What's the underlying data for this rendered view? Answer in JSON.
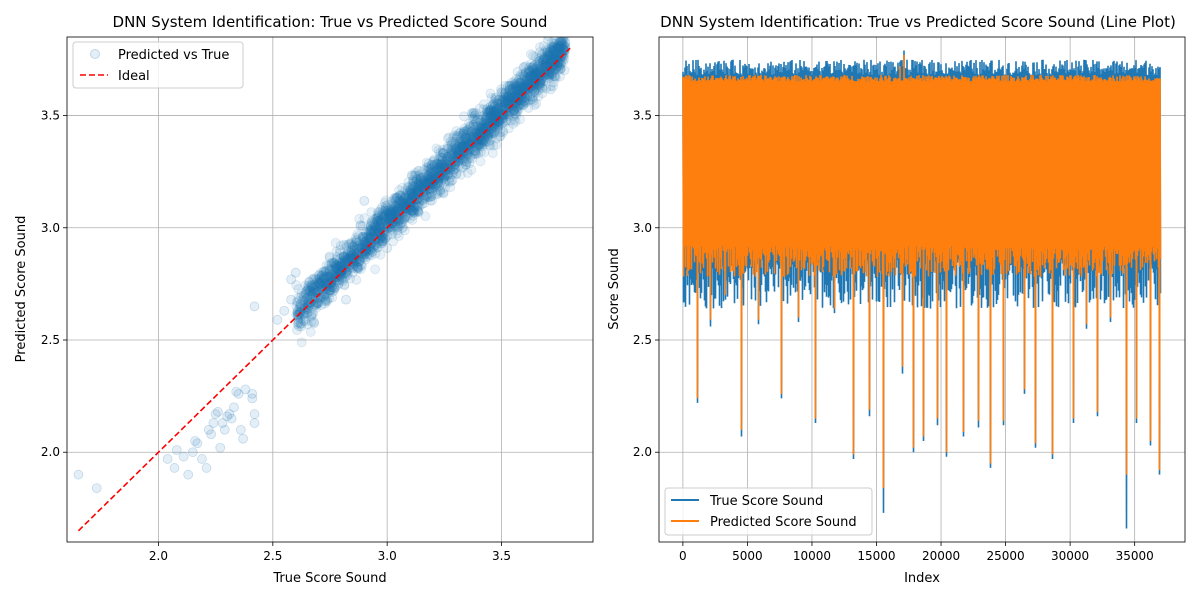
{
  "chart_data": [
    {
      "type": "scatter",
      "title": "DNN System Identification: True vs Predicted Score Sound",
      "xlabel": "True Score Sound",
      "ylabel": "Predicted Score Sound",
      "xlim": [
        1.6,
        3.9
      ],
      "ylim": [
        1.6,
        3.85
      ],
      "xticks": [
        "2.0",
        "2.5",
        "3.0",
        "3.5"
      ],
      "yticks": [
        "2.0",
        "2.5",
        "3.0",
        "3.5"
      ],
      "grid": true,
      "legend_position": "top-left",
      "legend": [
        "Predicted vs True",
        "Ideal"
      ],
      "series": [
        {
          "name": "Predicted vs True",
          "color": "#1f77b4",
          "points": [
            [
              1.65,
              1.9
            ],
            [
              1.73,
              1.84
            ],
            [
              2.04,
              1.97
            ],
            [
              2.07,
              1.93
            ],
            [
              2.08,
              2.01
            ],
            [
              2.11,
              1.98
            ],
            [
              2.13,
              1.9
            ],
            [
              2.15,
              2.0
            ],
            [
              2.16,
              2.05
            ],
            [
              2.17,
              2.04
            ],
            [
              2.19,
              1.97
            ],
            [
              2.21,
              1.93
            ],
            [
              2.22,
              2.1
            ],
            [
              2.23,
              2.08
            ],
            [
              2.24,
              2.13
            ],
            [
              2.25,
              2.17
            ],
            [
              2.26,
              2.18
            ],
            [
              2.27,
              2.02
            ],
            [
              2.28,
              2.13
            ],
            [
              2.29,
              2.1
            ],
            [
              2.3,
              2.16
            ],
            [
              2.31,
              2.17
            ],
            [
              2.32,
              2.15
            ],
            [
              2.33,
              2.2
            ],
            [
              2.34,
              2.27
            ],
            [
              2.35,
              2.26
            ],
            [
              2.36,
              2.1
            ],
            [
              2.37,
              2.06
            ],
            [
              2.38,
              2.28
            ],
            [
              2.41,
              2.26
            ],
            [
              2.41,
              2.24
            ],
            [
              2.42,
              2.17
            ],
            [
              2.42,
              2.13
            ],
            [
              2.42,
              2.65
            ],
            [
              2.52,
              2.59
            ],
            [
              2.55,
              2.63
            ],
            [
              2.58,
              2.68
            ],
            [
              2.58,
              2.77
            ],
            [
              2.6,
              2.8
            ],
            [
              2.62,
              2.66
            ],
            [
              2.65,
              2.72
            ],
            [
              2.68,
              2.58
            ],
            [
              2.7,
              2.69
            ],
            [
              2.73,
              2.75
            ],
            [
              2.75,
              2.72
            ],
            [
              2.78,
              2.82
            ],
            [
              2.8,
              2.79
            ],
            [
              2.82,
              2.68
            ],
            [
              2.85,
              2.82
            ],
            [
              2.9,
              3.12
            ],
            [
              2.98,
              2.94
            ],
            [
              3.0,
              2.91
            ],
            [
              3.05,
              3.12
            ],
            [
              3.18,
              3.27
            ],
            [
              3.25,
              3.29
            ],
            [
              3.4,
              3.42
            ]
          ],
          "band": {
            "x_range": [
              2.6,
              3.78
            ],
            "slope": 1.0,
            "intercept": 0.02,
            "spread": 0.045
          }
        },
        {
          "name": "Ideal",
          "color": "#ff0000",
          "style": "dashed",
          "points": [
            [
              1.65,
              1.65
            ],
            [
              3.8,
              3.8
            ]
          ]
        }
      ]
    },
    {
      "type": "line",
      "title": "DNN System Identification: True vs Predicted Score Sound (Line Plot)",
      "xlabel": "Index",
      "ylabel": "Score Sound",
      "xlim": [
        -1850,
        38900
      ],
      "ylim": [
        1.6,
        3.85
      ],
      "xticks": [
        "0",
        "5000",
        "10000",
        "15000",
        "20000",
        "25000",
        "30000",
        "35000"
      ],
      "yticks": [
        "2.0",
        "2.5",
        "3.0",
        "3.5"
      ],
      "grid": true,
      "legend_position": "bottom-left",
      "legend": [
        "True Score Sound",
        "Predicted Score Sound"
      ],
      "n_points": 37000,
      "band": {
        "true_top": 3.7,
        "true_bottom": 2.75,
        "pred_top": 3.66,
        "pred_bottom": 2.85
      },
      "series": [
        {
          "name": "True Score Sound",
          "color": "#1f77b4",
          "spikes": [
            [
              1100,
              2.22
            ],
            [
              2100,
              2.56
            ],
            [
              3300,
              2.68
            ],
            [
              4500,
              2.07
            ],
            [
              5800,
              2.57
            ],
            [
              7600,
              2.24
            ],
            [
              8900,
              2.58
            ],
            [
              10200,
              2.13
            ],
            [
              11700,
              2.62
            ],
            [
              13200,
              1.97
            ],
            [
              14400,
              2.16
            ],
            [
              15500,
              1.73
            ],
            [
              17000,
              2.35
            ],
            [
              17800,
              2.0
            ],
            [
              18600,
              2.05
            ],
            [
              19700,
              2.12
            ],
            [
              20400,
              1.98
            ],
            [
              21700,
              2.07
            ],
            [
              22900,
              2.11
            ],
            [
              23800,
              1.93
            ],
            [
              24800,
              2.12
            ],
            [
              26400,
              2.26
            ],
            [
              27300,
              2.02
            ],
            [
              28600,
              1.97
            ],
            [
              30200,
              2.13
            ],
            [
              31200,
              2.55
            ],
            [
              32100,
              2.16
            ],
            [
              33100,
              2.58
            ],
            [
              34300,
              1.66
            ],
            [
              35100,
              2.13
            ],
            [
              36200,
              2.03
            ],
            [
              36900,
              1.9
            ]
          ],
          "peaks": [
            [
              17100,
              3.79
            ],
            [
              16800,
              3.74
            ],
            [
              4800,
              3.73
            ],
            [
              26500,
              3.74
            ]
          ]
        },
        {
          "name": "Predicted Score Sound",
          "color": "#ff7f0e",
          "spikes": [
            [
              1100,
              2.24
            ],
            [
              2100,
              2.59
            ],
            [
              3300,
              2.7
            ],
            [
              4500,
              2.1
            ],
            [
              5800,
              2.59
            ],
            [
              7600,
              2.26
            ],
            [
              8900,
              2.6
            ],
            [
              10200,
              2.15
            ],
            [
              11700,
              2.64
            ],
            [
              13200,
              1.99
            ],
            [
              14400,
              2.19
            ],
            [
              15500,
              1.84
            ],
            [
              17000,
              2.38
            ],
            [
              17800,
              2.02
            ],
            [
              18600,
              2.07
            ],
            [
              19700,
              2.15
            ],
            [
              20400,
              2.0
            ],
            [
              21700,
              2.09
            ],
            [
              22900,
              2.14
            ],
            [
              23800,
              1.95
            ],
            [
              24800,
              2.14
            ],
            [
              26400,
              2.28
            ],
            [
              27300,
              2.04
            ],
            [
              28600,
              1.99
            ],
            [
              30200,
              2.15
            ],
            [
              31200,
              2.57
            ],
            [
              32100,
              2.18
            ],
            [
              33100,
              2.6
            ],
            [
              34300,
              1.9
            ],
            [
              35100,
              2.15
            ],
            [
              36200,
              2.05
            ],
            [
              36900,
              1.92
            ]
          ],
          "peaks": [
            [
              17100,
              3.77
            ],
            [
              16800,
              3.72
            ]
          ]
        }
      ]
    }
  ]
}
